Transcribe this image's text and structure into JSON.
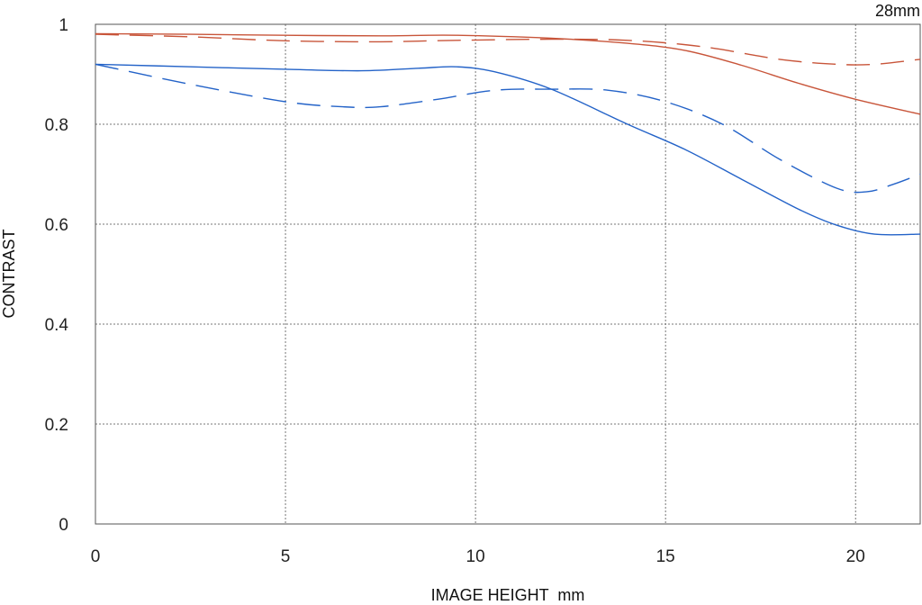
{
  "chart_data": {
    "type": "line",
    "title": "",
    "corner_label": "28mm",
    "xlabel": "IMAGE HEIGHT  mm",
    "ylabel": "CONTRAST",
    "xlim": [
      0,
      21.7
    ],
    "ylim": [
      0,
      1
    ],
    "x_ticks": [
      0,
      5,
      10,
      15,
      20
    ],
    "x_tick_labels": [
      "0",
      "5",
      "10",
      "15",
      "20"
    ],
    "y_ticks": [
      0,
      0.2,
      0.4,
      0.6,
      0.8,
      1
    ],
    "y_tick_labels": [
      "0",
      "0.2",
      "0.4",
      "0.6",
      "0.8",
      "1"
    ],
    "grid": true,
    "series": [
      {
        "color": "#c8553a",
        "style": "solid",
        "x": [
          0,
          2.5,
          5,
          7.5,
          9.5,
          12,
          14,
          15.5,
          17,
          18.5,
          20,
          21.7
        ],
        "y": [
          0.981,
          0.98,
          0.978,
          0.977,
          0.978,
          0.972,
          0.962,
          0.948,
          0.918,
          0.882,
          0.85,
          0.82
        ]
      },
      {
        "color": "#c8553a",
        "style": "dashed",
        "x": [
          0,
          2.5,
          5,
          7.5,
          9.5,
          12,
          14,
          16,
          18,
          19.5,
          20.5,
          21.7
        ],
        "y": [
          0.98,
          0.975,
          0.967,
          0.965,
          0.968,
          0.97,
          0.968,
          0.955,
          0.93,
          0.92,
          0.92,
          0.93
        ]
      },
      {
        "color": "#2463c8",
        "style": "solid",
        "x": [
          0,
          2.5,
          5,
          7,
          8.5,
          9.5,
          10.5,
          12,
          14,
          15.5,
          17,
          18.5,
          19.5,
          20.5,
          21.7
        ],
        "y": [
          0.92,
          0.915,
          0.91,
          0.907,
          0.912,
          0.915,
          0.905,
          0.87,
          0.8,
          0.75,
          0.69,
          0.63,
          0.598,
          0.58,
          0.58
        ]
      },
      {
        "color": "#2463c8",
        "style": "dashed",
        "x": [
          0,
          2.5,
          5,
          6.5,
          7.5,
          9,
          10.5,
          12,
          13.5,
          15,
          16.5,
          18,
          19.5,
          20.3,
          21,
          21.7
        ],
        "y": [
          0.92,
          0.88,
          0.845,
          0.835,
          0.835,
          0.85,
          0.868,
          0.87,
          0.868,
          0.845,
          0.8,
          0.73,
          0.672,
          0.665,
          0.68,
          0.7
        ]
      }
    ]
  }
}
